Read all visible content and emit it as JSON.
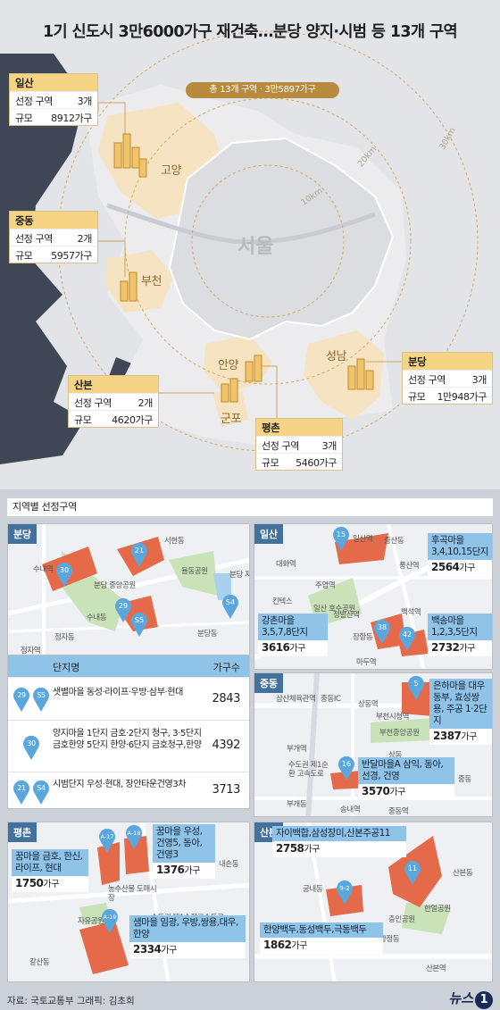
{
  "title": "1기 신도시 3만6000가구 재건축…분당 양지·시범 등 13개 구역",
  "total_pill": "총 13개 구역 · 3만5897가구",
  "rings": {
    "r10": "10km",
    "r20": "20km",
    "r30": "30km"
  },
  "labels": {
    "seoul": "서울",
    "goyang": "고양",
    "bucheon": "부천",
    "anyang": "안양",
    "gunpo": "군포",
    "seongnam": "성남"
  },
  "regions": [
    {
      "name": "일산",
      "select_label": "선정 구역",
      "select_value": "3개",
      "size_label": "규모",
      "size_value": "8912가구"
    },
    {
      "name": "중동",
      "select_label": "선정 구역",
      "select_value": "2개",
      "size_label": "규모",
      "size_value": "5957가구"
    },
    {
      "name": "산본",
      "select_label": "선정 구역",
      "select_value": "2개",
      "size_label": "규모",
      "size_value": "4620가구"
    },
    {
      "name": "평촌",
      "select_label": "선정 구역",
      "select_value": "3개",
      "size_label": "규모",
      "size_value": "5460가구"
    },
    {
      "name": "분당",
      "select_label": "선정 구역",
      "select_value": "3개",
      "size_label": "규모",
      "size_value": "1만948가구"
    }
  ],
  "section_title": "지역별 선정구역",
  "bundang": {
    "tag": "분당",
    "streets": [
      "서현동",
      "수내역",
      "수내동",
      "정자동",
      "정자역",
      "분당동",
      "율동공원",
      "분당 중앙공원",
      "분당 저수지"
    ],
    "pins": [
      "30",
      "21",
      "29",
      "S5",
      "S4"
    ],
    "table": {
      "col_name": "단지명",
      "col_count": "가구수",
      "rows": [
        {
          "pins": [
            "29",
            "S5"
          ],
          "name": "샛별마을 동성·라이프·우방·삼부·현대",
          "count": "2843"
        },
        {
          "pins": [
            "30"
          ],
          "name": "양지마을 1단지 금호·2단지 청구, 3·5단지 금호한양 5단지 한양·6단지 금호청구,한양",
          "count": "4392"
        },
        {
          "pins": [
            "21",
            "S4"
          ],
          "name": "시범단지 우성·현대, 장안타운건영3차",
          "count": "3713"
        }
      ]
    }
  },
  "ilsan": {
    "tag": "일산",
    "streets": [
      "일산역",
      "중산동",
      "대화역",
      "주엽역",
      "킨텍스",
      "정발산역",
      "일산 호수공원",
      "장항동",
      "마두역",
      "백석역",
      "풍산역"
    ],
    "pins": [
      "15",
      "38",
      "42"
    ],
    "boxes": [
      {
        "title": "후곡마을 3,4,10,15단지",
        "count": "2564",
        "unit": "가구"
      },
      {
        "title": "강촌마을 3,5,7,8단지",
        "count": "3616",
        "unit": "가구"
      },
      {
        "title": "백송마을 1,2,3,5단지",
        "count": "2732",
        "unit": "가구"
      }
    ]
  },
  "jungdong": {
    "tag": "중동",
    "streets": [
      "삼산체육관역",
      "중동IC",
      "상동역",
      "부천시청역",
      "부천중앙공원",
      "부개역",
      "수도권 제1순환 고속도로",
      "상동",
      "부개동",
      "중동역",
      "송내역",
      "중동"
    ],
    "pins": [
      "5",
      "16"
    ],
    "boxes": [
      {
        "title": "은하마을 대우동부, 효성쌍용, 주공 1·2단지",
        "count": "2387",
        "unit": "가구"
      },
      {
        "title": "반달마을A 삼익, 동아, 선경, 건영",
        "count": "3570",
        "unit": "가구"
      }
    ]
  },
  "pyeongchon": {
    "tag": "평촌",
    "streets": [
      "내손동",
      "농수산물 도매시장",
      "수도권 제1순환고속도로",
      "자유공원",
      "갈산동"
    ],
    "pins": [
      "A-17",
      "A-18",
      "A-19"
    ],
    "boxes": [
      {
        "title": "꿈마을 금호, 한신, 라이프, 현대",
        "count": "1750",
        "unit": "가구"
      },
      {
        "title": "꿈마을 우성, 건영5, 동아, 건영3",
        "count": "1376",
        "unit": "가구"
      },
      {
        "title": "샘마을 임광, 우방,쌍용,대우, 한양",
        "count": "2334",
        "unit": "가구"
      }
    ]
  },
  "sanbon": {
    "tag": "산본",
    "streets": [
      "산본동",
      "궁내동",
      "한얼공원",
      "충인공원",
      "광정동",
      "산본역"
    ],
    "pins": [
      "11",
      "9-2"
    ],
    "boxes": [
      {
        "title": "자이백합,삼성장미,산본주공11",
        "count": "2758",
        "unit": "가구"
      },
      {
        "title": "한양백두,동성백두,극동백두",
        "count": "1862",
        "unit": "가구"
      }
    ]
  },
  "footer": {
    "source": "자료: 국토교통부   그래픽: 김초희",
    "logo": "뉴스",
    "logo_num": "1"
  },
  "colors": {
    "block": "#e46a4a",
    "pin": "#5aa7de",
    "header_gold": "#f6d485",
    "tag": "#43719e"
  }
}
